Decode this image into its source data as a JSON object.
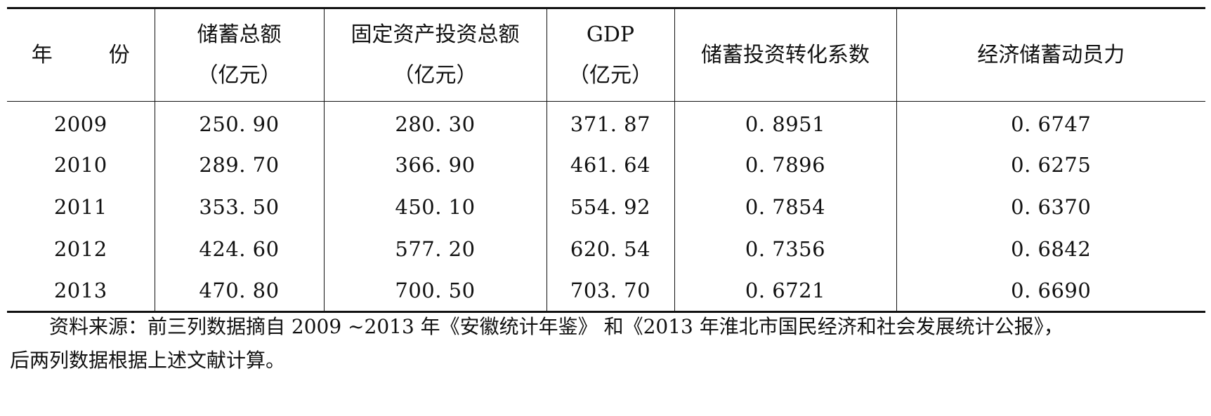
{
  "table": {
    "headers": [
      {
        "line1": "年",
        "line1b": "份",
        "line2": ""
      },
      {
        "line1": "储蓄总额",
        "line2": "（亿元）"
      },
      {
        "line1": "固定资产投资总额",
        "line2": "（亿元）"
      },
      {
        "line1": "GDP",
        "line2": "（亿元）"
      },
      {
        "line1": "储蓄投资转化系数",
        "line2": ""
      },
      {
        "line1": "经济储蓄动员力",
        "line2": ""
      }
    ],
    "rows": [
      [
        "2009",
        "250. 90",
        "280. 30",
        "371. 87",
        "0. 8951",
        "0. 6747"
      ],
      [
        "2010",
        "289. 70",
        "366. 90",
        "461. 64",
        "0. 7896",
        "0. 6275"
      ],
      [
        "2011",
        "353. 50",
        "450. 10",
        "554. 92",
        "0. 7854",
        "0. 6370"
      ],
      [
        "2012",
        "424. 60",
        "577. 20",
        "620. 54",
        "0. 7356",
        "0. 6842"
      ],
      [
        "2013",
        "470. 80",
        "700. 50",
        "703. 70",
        "0. 6721",
        "0. 6690"
      ]
    ]
  },
  "note": {
    "line1": "资料来源：前三列数据摘自 2009 ~2013 年《安徽统计年鉴》 和《2013 年淮北市国民经济和社会发展统计公报》，",
    "line2": "后两列数据根据上述文献计算。"
  }
}
